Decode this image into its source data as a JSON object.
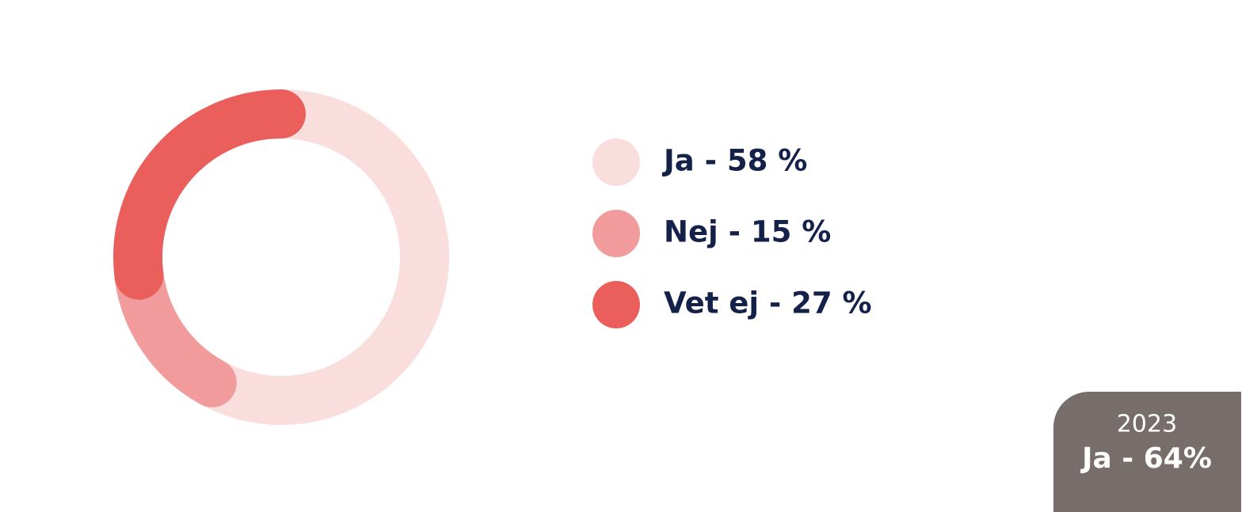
{
  "chart_data": {
    "type": "donut",
    "categories": [
      "Ja - 58 %",
      "Nej - 15 %",
      "Vet ej - 27 %"
    ],
    "values": [
      58,
      15,
      27
    ],
    "colors": [
      "#fadede",
      "#f29b9c",
      "#ea5f5b"
    ],
    "annotation": {
      "year": "2023",
      "text": "Ja - 64%"
    }
  }
}
